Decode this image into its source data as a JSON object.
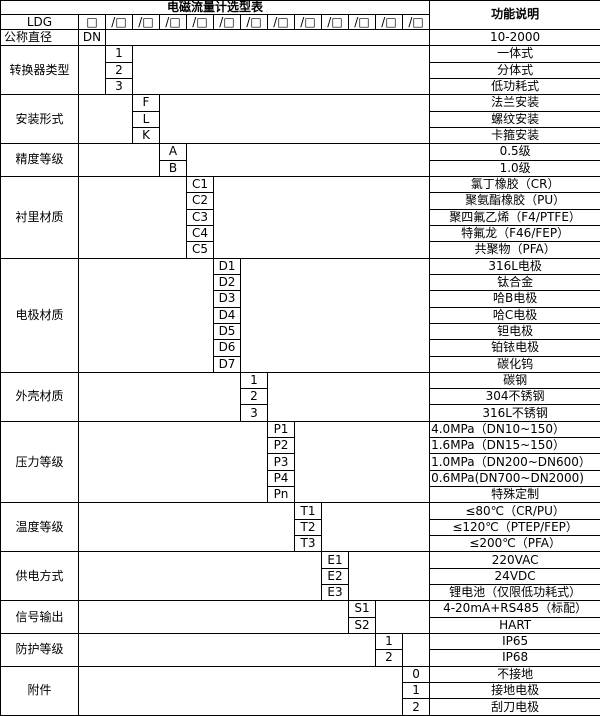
{
  "table": {
    "title": "电磁流量计选型表",
    "function_header": "功能说明",
    "model_prefix": "LDG",
    "box_symbol": "□",
    "slot_symbol": "/□",
    "slot_count": 12,
    "total_columns": 14,
    "groups": [
      {
        "label": "公称直径",
        "label_align": "left",
        "col": 2,
        "options": [
          {
            "code": "DN",
            "desc": "10-2000"
          }
        ]
      },
      {
        "label": "转换器类型",
        "col": 3,
        "options": [
          {
            "code": "1",
            "desc": "一体式"
          },
          {
            "code": "2",
            "desc": "分体式"
          },
          {
            "code": "3",
            "desc": "低功耗式"
          }
        ]
      },
      {
        "label": "安装形式",
        "col": 4,
        "options": [
          {
            "code": "F",
            "desc": "法兰安装"
          },
          {
            "code": "L",
            "desc": "螺纹安装"
          },
          {
            "code": "K",
            "desc": "卡箍安装"
          }
        ]
      },
      {
        "label": "精度等级",
        "col": 5,
        "options": [
          {
            "code": "A",
            "desc": "0.5级"
          },
          {
            "code": "B",
            "desc": "1.0级"
          }
        ]
      },
      {
        "label": "衬里材质",
        "col": 6,
        "options": [
          {
            "code": "C1",
            "desc": "氯丁橡胶（CR）"
          },
          {
            "code": "C2",
            "desc": "聚氨酯橡胶（PU）"
          },
          {
            "code": "C3",
            "desc": "聚四氟乙烯（F4/PTFE）"
          },
          {
            "code": "C4",
            "desc": "特氟龙（F46/FEP）"
          },
          {
            "code": "C5",
            "desc": "共聚物（PFA）"
          }
        ]
      },
      {
        "label": "电极材质",
        "col": 7,
        "options": [
          {
            "code": "D1",
            "desc": "316L电极"
          },
          {
            "code": "D2",
            "desc": "钛合金"
          },
          {
            "code": "D3",
            "desc": "哈B电极"
          },
          {
            "code": "D4",
            "desc": "哈C电极"
          },
          {
            "code": "D5",
            "desc": "钽电极"
          },
          {
            "code": "D6",
            "desc": "铂铱电极"
          },
          {
            "code": "D7",
            "desc": "碳化钨"
          }
        ]
      },
      {
        "label": "外壳材质",
        "col": 8,
        "options": [
          {
            "code": "1",
            "desc": "碳钢"
          },
          {
            "code": "2",
            "desc": "304不锈钢"
          },
          {
            "code": "3",
            "desc": "316L不锈钢"
          }
        ]
      },
      {
        "label": "压力等级",
        "col": 9,
        "options": [
          {
            "code": "P1",
            "desc": "4.0MPa（DN10~150）",
            "align": "left"
          },
          {
            "code": "P2",
            "desc": "1.6MPa（DN15~150）",
            "align": "left"
          },
          {
            "code": "P3",
            "desc": "1.0MPa（DN200~DN600）",
            "align": "left"
          },
          {
            "code": "P4",
            "desc": "0.6MPa(DN700~DN2000)",
            "align": "left"
          },
          {
            "code": "Pn",
            "desc": "特殊定制"
          }
        ]
      },
      {
        "label": "温度等级",
        "col": 10,
        "options": [
          {
            "code": "T1",
            "desc": "≤80℃（CR/PU）"
          },
          {
            "code": "T2",
            "desc": "≤120℃（PTEP/FEP）"
          },
          {
            "code": "T3",
            "desc": "≤200℃（PFA）"
          }
        ]
      },
      {
        "label": "供电方式",
        "col": 11,
        "options": [
          {
            "code": "E1",
            "desc": "220VAC"
          },
          {
            "code": "E2",
            "desc": "24VDC"
          },
          {
            "code": "E3",
            "desc": "锂电池（仅限低功耗式）"
          }
        ]
      },
      {
        "label": "信号输出",
        "col": 12,
        "options": [
          {
            "code": "S1",
            "desc": "4-20mA+RS485（标配）"
          },
          {
            "code": "S2",
            "desc": "HART"
          }
        ]
      },
      {
        "label": "防护等级",
        "col": 13,
        "options": [
          {
            "code": "1",
            "desc": "IP65"
          },
          {
            "code": "2",
            "desc": "IP68"
          }
        ]
      },
      {
        "label": "附件",
        "col": 14,
        "options": [
          {
            "code": "0",
            "desc": "不接地"
          },
          {
            "code": "1",
            "desc": "接地电极"
          },
          {
            "code": "2",
            "desc": "刮刀电极"
          }
        ]
      }
    ]
  },
  "colors": {
    "border": "#000000",
    "background": "#ffffff",
    "text": "#000000"
  }
}
